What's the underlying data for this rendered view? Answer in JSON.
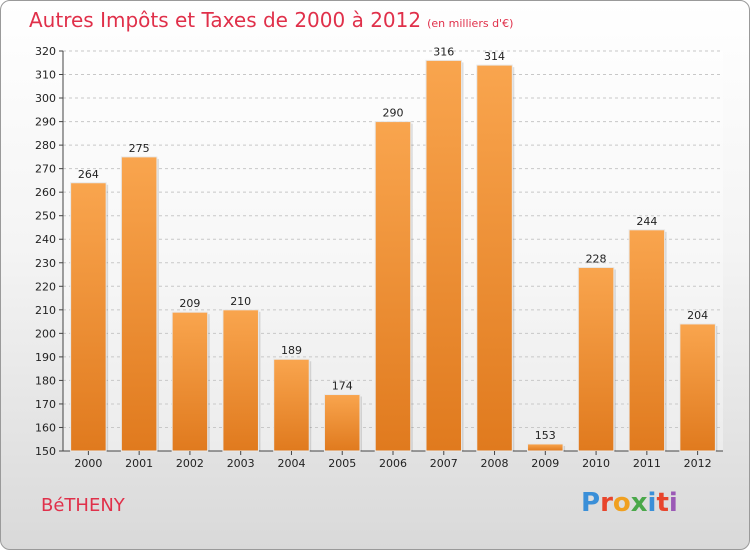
{
  "header": {
    "title": "Autres Impôts et Taxes de 2000 à 2012",
    "unit": "(en milliers d'€)"
  },
  "footer": {
    "commune": "BéTHENY",
    "logo_text": "Proxiti",
    "logo_colors": [
      "#3a8fd8",
      "#e8452c",
      "#f0a020",
      "#4aa84a",
      "#3a8fd8",
      "#e8452c",
      "#9b59b6"
    ]
  },
  "colors": {
    "title": "#e0304a",
    "bar_light": "#f9a54e",
    "bar_dark": "#e07a1e"
  },
  "chart_data": {
    "type": "bar",
    "title": "Autres Impôts et Taxes de 2000 à 2012",
    "xlabel": "",
    "ylabel": "",
    "categories": [
      "2000",
      "2001",
      "2002",
      "2003",
      "2004",
      "2005",
      "2006",
      "2007",
      "2008",
      "2009",
      "2010",
      "2011",
      "2012"
    ],
    "values": [
      264,
      275,
      209,
      210,
      189,
      174,
      290,
      316,
      314,
      153,
      228,
      244,
      204
    ],
    "ylim": [
      150,
      320
    ],
    "yticks": [
      150,
      160,
      170,
      180,
      190,
      200,
      210,
      220,
      230,
      240,
      250,
      260,
      270,
      280,
      290,
      300,
      310,
      320
    ],
    "grid": true
  }
}
